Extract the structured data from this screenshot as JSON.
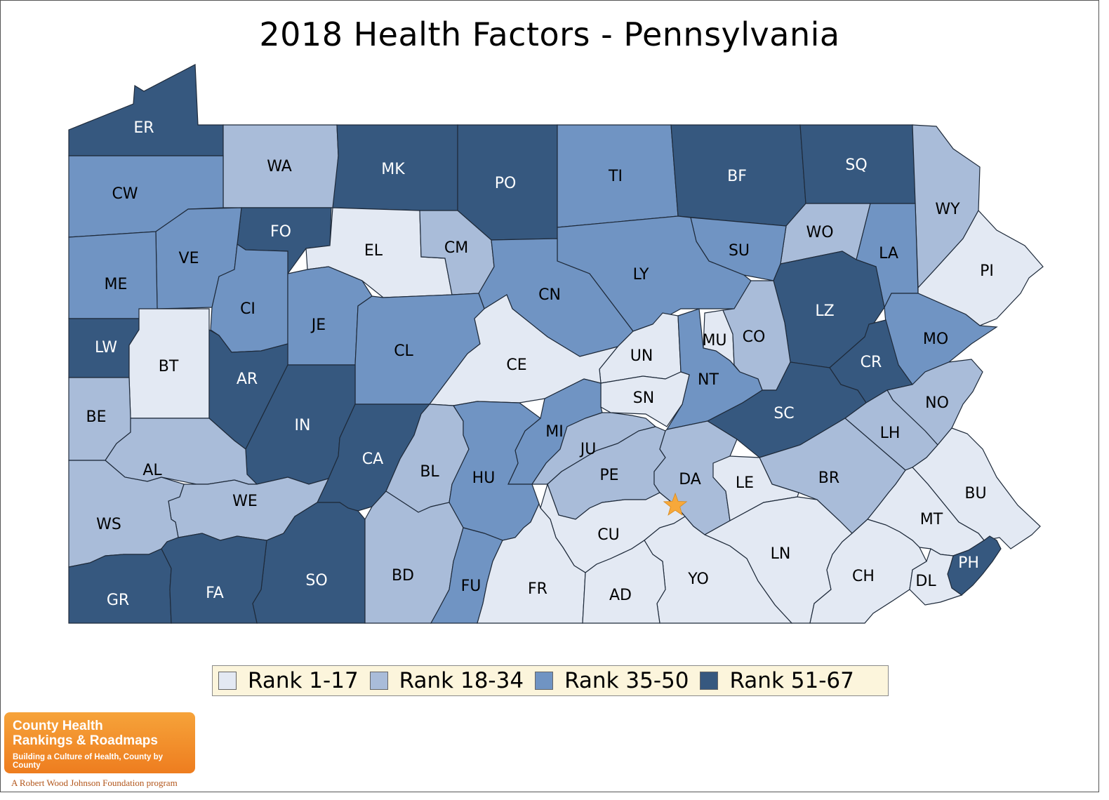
{
  "title": "2018 Health Factors - Pennsylvania",
  "legend": [
    {
      "label": "Rank 1-17",
      "color": "#e3e9f3"
    },
    {
      "label": "Rank 18-34",
      "color": "#a9bcd9"
    },
    {
      "label": "Rank 35-50",
      "color": "#7094c3"
    },
    {
      "label": "Rank 51-67",
      "color": "#36587f"
    }
  ],
  "counties": [
    {
      "code": "ER",
      "rank_group": 4
    },
    {
      "code": "WA",
      "rank_group": 2
    },
    {
      "code": "MK",
      "rank_group": 4
    },
    {
      "code": "PO",
      "rank_group": 4
    },
    {
      "code": "TI",
      "rank_group": 3
    },
    {
      "code": "BF",
      "rank_group": 4
    },
    {
      "code": "SQ",
      "rank_group": 4
    },
    {
      "code": "WY",
      "rank_group": 2
    },
    {
      "code": "CW",
      "rank_group": 3
    },
    {
      "code": "FO",
      "rank_group": 4
    },
    {
      "code": "EL",
      "rank_group": 1
    },
    {
      "code": "CM",
      "rank_group": 2
    },
    {
      "code": "WO",
      "rank_group": 2
    },
    {
      "code": "LA",
      "rank_group": 3
    },
    {
      "code": "SU",
      "rank_group": 3
    },
    {
      "code": "PI",
      "rank_group": 1
    },
    {
      "code": "VE",
      "rank_group": 3
    },
    {
      "code": "ME",
      "rank_group": 3
    },
    {
      "code": "LY",
      "rank_group": 3
    },
    {
      "code": "CN",
      "rank_group": 3
    },
    {
      "code": "CI",
      "rank_group": 3
    },
    {
      "code": "JE",
      "rank_group": 3
    },
    {
      "code": "LZ",
      "rank_group": 4
    },
    {
      "code": "CL",
      "rank_group": 3
    },
    {
      "code": "LW",
      "rank_group": 4
    },
    {
      "code": "BT",
      "rank_group": 1
    },
    {
      "code": "MU",
      "rank_group": 1
    },
    {
      "code": "CO",
      "rank_group": 2
    },
    {
      "code": "MO",
      "rank_group": 3
    },
    {
      "code": "UN",
      "rank_group": 1
    },
    {
      "code": "CE",
      "rank_group": 1
    },
    {
      "code": "CR",
      "rank_group": 4
    },
    {
      "code": "AR",
      "rank_group": 4
    },
    {
      "code": "NT",
      "rank_group": 3
    },
    {
      "code": "SN",
      "rank_group": 1
    },
    {
      "code": "NO",
      "rank_group": 2
    },
    {
      "code": "SC",
      "rank_group": 4
    },
    {
      "code": "BE",
      "rank_group": 2
    },
    {
      "code": "IN",
      "rank_group": 4
    },
    {
      "code": "MI",
      "rank_group": 3
    },
    {
      "code": "LH",
      "rank_group": 2
    },
    {
      "code": "JU",
      "rank_group": 2
    },
    {
      "code": "CA",
      "rank_group": 4
    },
    {
      "code": "AL",
      "rank_group": 2
    },
    {
      "code": "BL",
      "rank_group": 2
    },
    {
      "code": "PE",
      "rank_group": 2
    },
    {
      "code": "DA",
      "rank_group": 2
    },
    {
      "code": "BR",
      "rank_group": 2
    },
    {
      "code": "HU",
      "rank_group": 3
    },
    {
      "code": "LE",
      "rank_group": 1
    },
    {
      "code": "BU",
      "rank_group": 1
    },
    {
      "code": "WE",
      "rank_group": 2
    },
    {
      "code": "WS",
      "rank_group": 2
    },
    {
      "code": "MT",
      "rank_group": 1
    },
    {
      "code": "CU",
      "rank_group": 1
    },
    {
      "code": "LN",
      "rank_group": 1
    },
    {
      "code": "PH",
      "rank_group": 4
    },
    {
      "code": "SO",
      "rank_group": 4
    },
    {
      "code": "BD",
      "rank_group": 2
    },
    {
      "code": "YO",
      "rank_group": 1
    },
    {
      "code": "CH",
      "rank_group": 1
    },
    {
      "code": "DL",
      "rank_group": 1
    },
    {
      "code": "GR",
      "rank_group": 4
    },
    {
      "code": "FA",
      "rank_group": 4
    },
    {
      "code": "FU",
      "rank_group": 3
    },
    {
      "code": "FR",
      "rank_group": 1
    },
    {
      "code": "AD",
      "rank_group": 1
    }
  ],
  "marker": {
    "icon": "star-icon",
    "color": "#f7a83a"
  },
  "logo": {
    "line1": "County Health",
    "line2": "Rankings & Roadmaps",
    "subtitle": "Building a Culture of Health, County by County",
    "footer": "A Robert Wood Johnson Foundation program"
  }
}
